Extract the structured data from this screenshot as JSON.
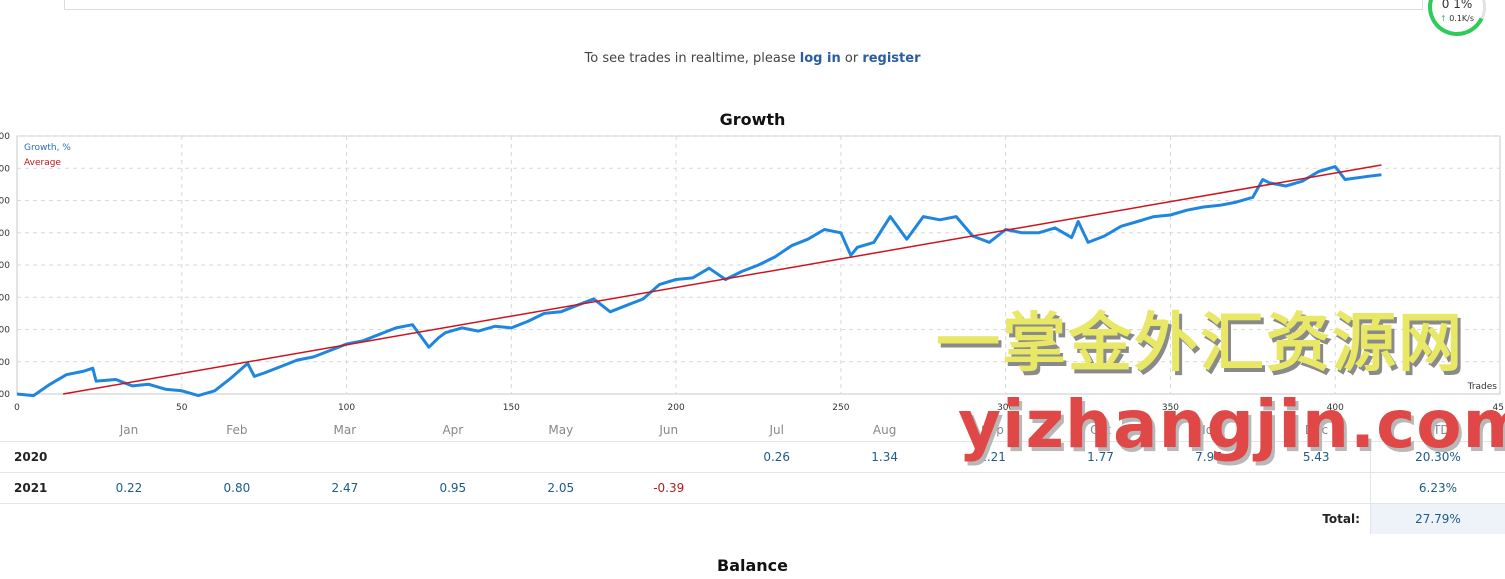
{
  "speed_widget": {
    "percent": "0 1%",
    "rate": "0.1K/s"
  },
  "realtime_note": {
    "prefix": "To see trades in realtime, please ",
    "login": "log in",
    "middle": " or ",
    "register": "register"
  },
  "growth_title": "Growth",
  "balance_title": "Balance",
  "colors": {
    "growth_line": "#1f86e0",
    "average_line": "#d0121b",
    "link": "#2a5d9f",
    "positive": "#1d5b8c",
    "negative": "#b01c1c"
  },
  "chart_data": {
    "type": "line",
    "legend": [
      "Growth, %",
      "Average"
    ],
    "x_axis_label": "Trades",
    "x_ticks": [
      "0",
      "50",
      "100",
      "150",
      "200",
      "250",
      "300",
      "350",
      "400",
      "45"
    ],
    "y_ticks": [
      "00",
      "00",
      "00",
      "00",
      "00",
      "00",
      "00",
      "00",
      "00"
    ],
    "xlim": [
      0,
      450
    ],
    "ylim": [
      0,
      8
    ],
    "grid": true,
    "legend_position": "top-left",
    "series": [
      {
        "name": "Growth, %",
        "x": [
          0,
          5,
          10,
          15,
          20,
          23,
          24,
          30,
          35,
          40,
          45,
          50,
          55,
          60,
          65,
          70,
          72,
          75,
          80,
          85,
          90,
          95,
          100,
          105,
          110,
          115,
          120,
          125,
          128,
          130,
          135,
          140,
          145,
          150,
          155,
          160,
          165,
          170,
          175,
          180,
          185,
          190,
          195,
          200,
          205,
          210,
          215,
          220,
          225,
          230,
          235,
          240,
          245,
          250,
          253,
          255,
          260,
          265,
          270,
          275,
          280,
          285,
          290,
          295,
          300,
          305,
          310,
          315,
          320,
          322,
          325,
          330,
          335,
          340,
          345,
          350,
          355,
          360,
          365,
          370,
          375,
          378,
          380,
          385,
          390,
          395,
          400,
          403,
          410,
          414
        ],
        "values": [
          0.0,
          -0.05,
          0.3,
          0.6,
          0.7,
          0.8,
          0.4,
          0.45,
          0.25,
          0.3,
          0.15,
          0.1,
          -0.05,
          0.1,
          0.5,
          0.95,
          0.55,
          0.65,
          0.85,
          1.05,
          1.15,
          1.35,
          1.55,
          1.65,
          1.85,
          2.05,
          2.15,
          1.45,
          1.75,
          1.9,
          2.05,
          1.95,
          2.1,
          2.05,
          2.25,
          2.5,
          2.55,
          2.75,
          2.95,
          2.55,
          2.75,
          2.95,
          3.4,
          3.55,
          3.6,
          3.9,
          3.55,
          3.8,
          4.0,
          4.25,
          4.6,
          4.8,
          5.1,
          5.0,
          4.3,
          4.55,
          4.7,
          5.5,
          4.8,
          5.5,
          5.4,
          5.5,
          4.9,
          4.7,
          5.1,
          5.0,
          5.0,
          5.15,
          4.85,
          5.35,
          4.7,
          4.9,
          5.2,
          5.35,
          5.5,
          5.55,
          5.7,
          5.8,
          5.85,
          5.95,
          6.1,
          6.65,
          6.55,
          6.45,
          6.6,
          6.9,
          7.05,
          6.65,
          6.75,
          6.8
        ]
      },
      {
        "name": "Average",
        "x": [
          14,
          414
        ],
        "values": [
          0.0,
          7.1
        ]
      }
    ]
  },
  "monthly": {
    "headers": [
      "",
      "Jan",
      "Feb",
      "Mar",
      "Apr",
      "May",
      "Jun",
      "Jul",
      "Aug",
      "Sep",
      "Oct",
      "Nov",
      "Dec",
      "YTD"
    ],
    "rows": [
      {
        "year": "2020",
        "values": [
          "",
          "",
          "",
          "",
          "",
          "",
          "0.26",
          "1.34",
          "2.21",
          "1.77",
          "7.97",
          "5.43"
        ],
        "ytd": "20.30%"
      },
      {
        "year": "2021",
        "values": [
          "0.22",
          "0.80",
          "2.47",
          "0.95",
          "2.05",
          "-0.39",
          "",
          "",
          "",
          "",
          "",
          ""
        ],
        "ytd": "6.23%"
      }
    ],
    "total_label": "Total:",
    "total_value": "27.79%"
  },
  "watermark": {
    "line1": "一掌金外汇资源网",
    "line2": "yizhangjin.com"
  }
}
